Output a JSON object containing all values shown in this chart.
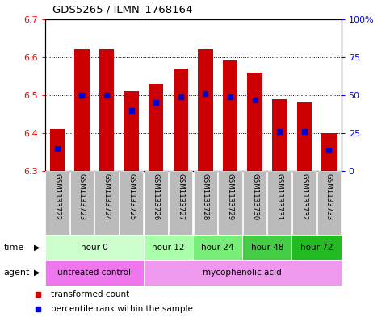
{
  "title": "GDS5265 / ILMN_1768164",
  "samples": [
    "GSM1133722",
    "GSM1133723",
    "GSM1133724",
    "GSM1133725",
    "GSM1133726",
    "GSM1133727",
    "GSM1133728",
    "GSM1133729",
    "GSM1133730",
    "GSM1133731",
    "GSM1133732",
    "GSM1133733"
  ],
  "bar_bottom": 6.3,
  "bar_tops": [
    6.41,
    6.62,
    6.62,
    6.51,
    6.53,
    6.57,
    6.62,
    6.59,
    6.56,
    6.49,
    6.48,
    6.4
  ],
  "percentile_values": [
    15,
    50,
    50,
    40,
    45,
    49,
    51,
    49,
    47,
    26,
    26,
    14
  ],
  "ylim_left": [
    6.3,
    6.7
  ],
  "ylim_right": [
    0,
    100
  ],
  "yticks_left": [
    6.3,
    6.4,
    6.5,
    6.6,
    6.7
  ],
  "yticks_right": [
    0,
    25,
    50,
    75,
    100
  ],
  "ytick_labels_right": [
    "0",
    "25",
    "50",
    "75",
    "100%"
  ],
  "bar_color": "#cc0000",
  "percentile_color": "#0000cc",
  "time_groups": [
    {
      "label": "hour 0",
      "start": 0,
      "end": 4,
      "color": "#ccffcc"
    },
    {
      "label": "hour 12",
      "start": 4,
      "end": 6,
      "color": "#aaffaa"
    },
    {
      "label": "hour 24",
      "start": 6,
      "end": 8,
      "color": "#77ee77"
    },
    {
      "label": "hour 48",
      "start": 8,
      "end": 10,
      "color": "#44cc44"
    },
    {
      "label": "hour 72",
      "start": 10,
      "end": 12,
      "color": "#22bb22"
    }
  ],
  "agent_untreated_color": "#ee77ee",
  "agent_myco_color": "#ee99ee",
  "sample_bg_color": "#bbbbbb",
  "legend_red_label": "transformed count",
  "legend_blue_label": "percentile rank within the sample",
  "time_label": "time",
  "agent_label": "agent",
  "bar_width": 0.6
}
